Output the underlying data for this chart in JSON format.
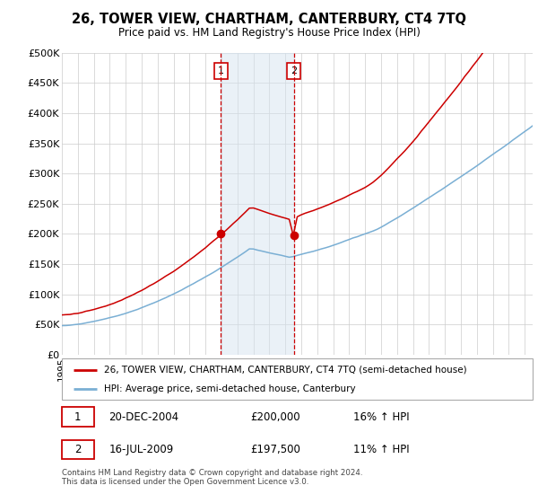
{
  "title": "26, TOWER VIEW, CHARTHAM, CANTERBURY, CT4 7TQ",
  "subtitle": "Price paid vs. HM Land Registry's House Price Index (HPI)",
  "legend_line1": "26, TOWER VIEW, CHARTHAM, CANTERBURY, CT4 7TQ (semi-detached house)",
  "legend_line2": "HPI: Average price, semi-detached house, Canterbury",
  "annotation1_date": "20-DEC-2004",
  "annotation1_price": "£200,000",
  "annotation1_hpi": "16% ↑ HPI",
  "annotation2_date": "16-JUL-2009",
  "annotation2_price": "£197,500",
  "annotation2_hpi": "11% ↑ HPI",
  "footnote": "Contains HM Land Registry data © Crown copyright and database right 2024.\nThis data is licensed under the Open Government Licence v3.0.",
  "hpi_color": "#7aafd4",
  "price_color": "#cc0000",
  "marker_color": "#cc0000",
  "shading_color": "#d6e4f0",
  "annotation_box_color": "#cc0000",
  "grid_color": "#cccccc",
  "sale1_year": 2004.97,
  "sale1_price": 200000,
  "sale2_year": 2009.54,
  "sale2_price": 197500,
  "xlim_start": 1995,
  "xlim_end": 2024.5,
  "ylim_min": 0,
  "ylim_max": 500000,
  "yticks": [
    0,
    50000,
    100000,
    150000,
    200000,
    250000,
    300000,
    350000,
    400000,
    450000,
    500000
  ],
  "ytick_labels": [
    "£0",
    "£50K",
    "£100K",
    "£150K",
    "£200K",
    "£250K",
    "£300K",
    "£350K",
    "£400K",
    "£450K",
    "£500K"
  ]
}
